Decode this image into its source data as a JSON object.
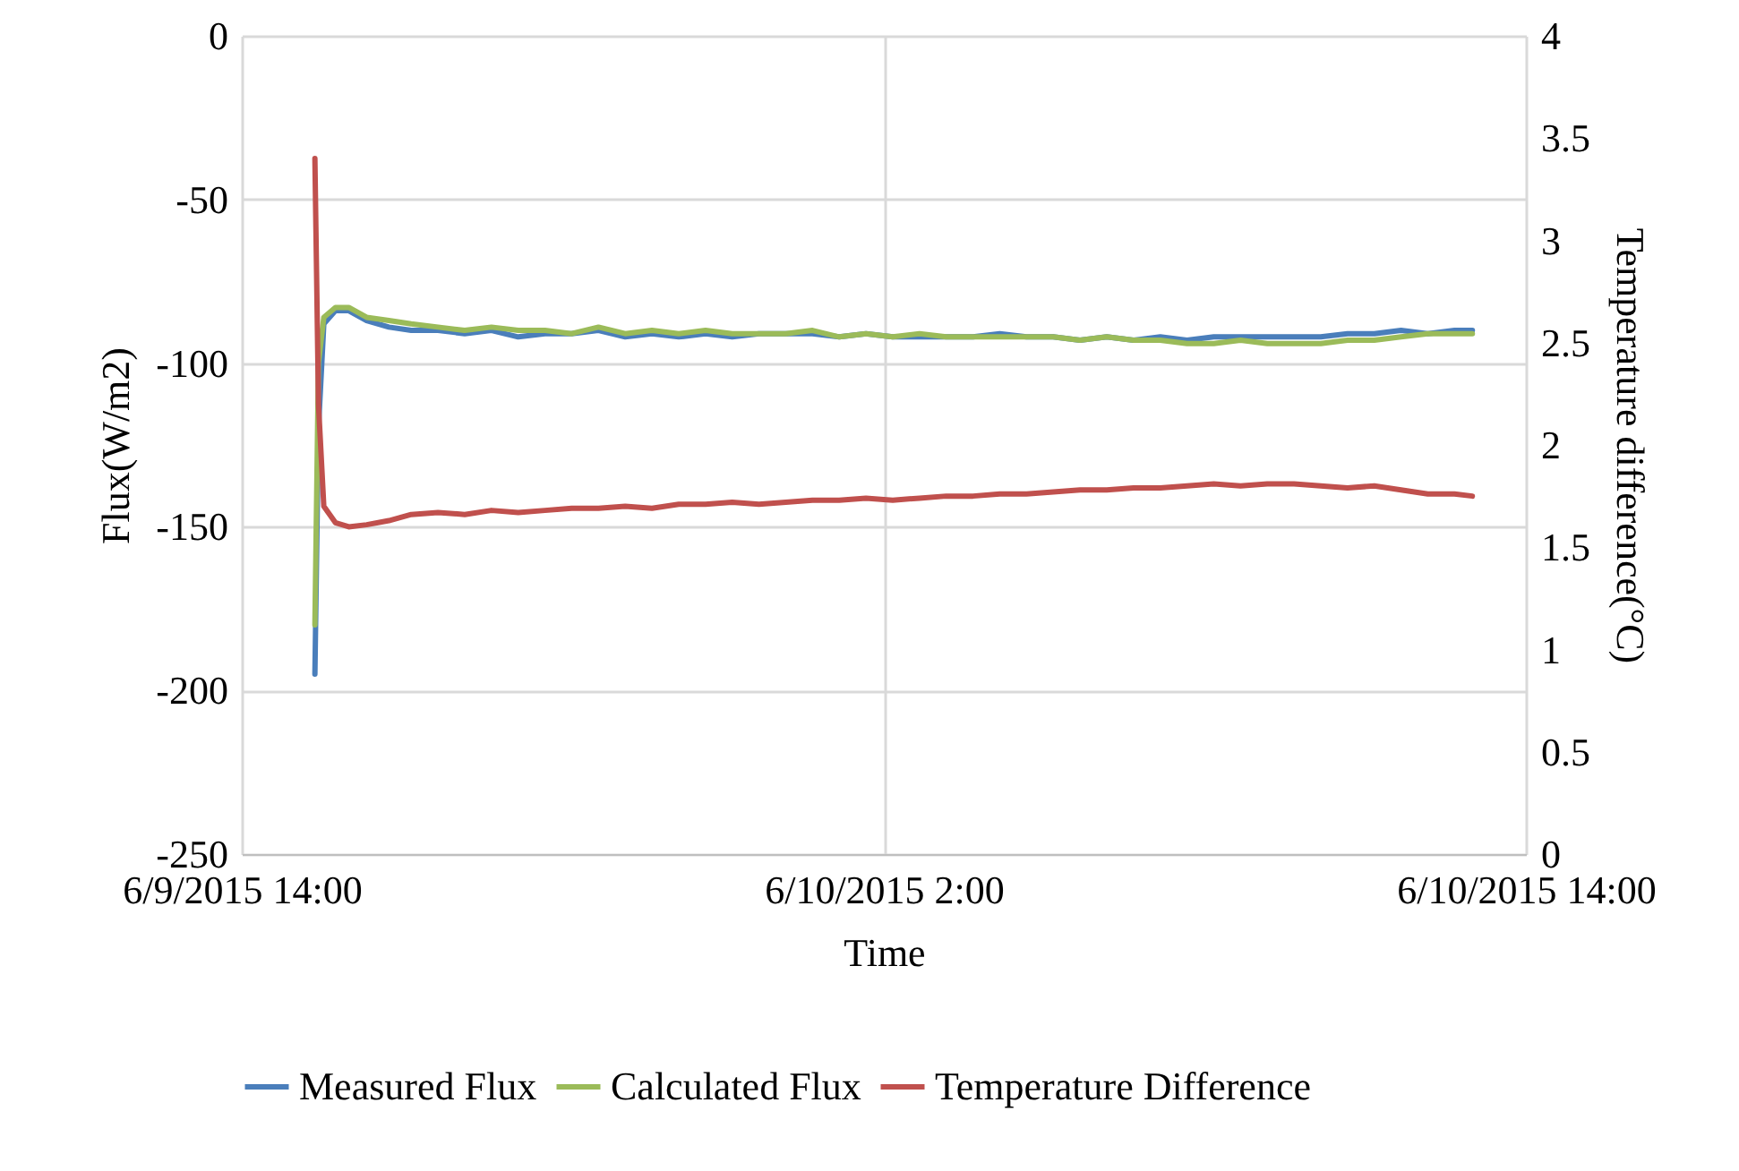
{
  "chart_data": {
    "type": "line",
    "xlabel": "Time",
    "ylabel": "Flux(W/m2)",
    "y2label": "Temperature difference(°C)",
    "x": [
      "2015-06-09T15:22",
      "2015-06-09T15:26",
      "2015-06-09T15:32",
      "2015-06-09T15:45",
      "2015-06-09T16:00",
      "2015-06-09T16:20",
      "2015-06-09T16:45",
      "2015-06-09T17:10",
      "2015-06-09T17:40",
      "2015-06-09T18:10",
      "2015-06-09T18:40",
      "2015-06-09T19:10",
      "2015-06-09T19:40",
      "2015-06-09T20:10",
      "2015-06-09T20:40",
      "2015-06-09T21:10",
      "2015-06-09T21:40",
      "2015-06-09T22:10",
      "2015-06-09T22:40",
      "2015-06-09T23:10",
      "2015-06-09T23:40",
      "2015-06-10T00:10",
      "2015-06-10T00:40",
      "2015-06-10T01:10",
      "2015-06-10T01:40",
      "2015-06-10T02:10",
      "2015-06-10T02:40",
      "2015-06-10T03:10",
      "2015-06-10T03:40",
      "2015-06-10T04:10",
      "2015-06-10T04:40",
      "2015-06-10T05:10",
      "2015-06-10T05:40",
      "2015-06-10T06:10",
      "2015-06-10T06:40",
      "2015-06-10T07:10",
      "2015-06-10T07:40",
      "2015-06-10T08:10",
      "2015-06-10T08:40",
      "2015-06-10T09:10",
      "2015-06-10T09:40",
      "2015-06-10T10:10",
      "2015-06-10T10:40",
      "2015-06-10T11:10",
      "2015-06-10T11:40",
      "2015-06-10T12:10",
      "2015-06-10T12:40",
      "2015-06-10T13:00"
    ],
    "series": [
      {
        "name": "Measured Flux",
        "color": "#4a7ebb",
        "values": [
          -195,
          -120,
          -88,
          -84,
          -84,
          -87,
          -89,
          -90,
          -90,
          -91,
          -90,
          -92,
          -91,
          -91,
          -90,
          -92,
          -91,
          -92,
          -91,
          -92,
          -91,
          -91,
          -91,
          -92,
          -91,
          -92,
          -92,
          -92,
          -92,
          -91,
          -92,
          -92,
          -93,
          -92,
          -93,
          -92,
          -93,
          -92,
          -92,
          -92,
          -92,
          -92,
          -91,
          -91,
          -90,
          -91,
          -90,
          -90
        ]
      },
      {
        "name": "Calculated Flux",
        "color": "#9bbb59",
        "values": [
          -180,
          -100,
          -86,
          -83,
          -83,
          -86,
          -87,
          -88,
          -89,
          -90,
          -89,
          -90,
          -90,
          -91,
          -89,
          -91,
          -90,
          -91,
          -90,
          -91,
          -91,
          -91,
          -90,
          -92,
          -91,
          -92,
          -91,
          -92,
          -92,
          -92,
          -92,
          -92,
          -93,
          -92,
          -93,
          -93,
          -94,
          -94,
          -93,
          -94,
          -94,
          -94,
          -93,
          -93,
          -92,
          -91,
          -91,
          -91
        ]
      },
      {
        "name": "Temperature Difference",
        "color": "#c0504d",
        "axis": "y2",
        "values": [
          3.4,
          2.2,
          1.7,
          1.62,
          1.6,
          1.61,
          1.63,
          1.66,
          1.67,
          1.66,
          1.68,
          1.67,
          1.68,
          1.69,
          1.69,
          1.7,
          1.69,
          1.71,
          1.71,
          1.72,
          1.71,
          1.72,
          1.73,
          1.73,
          1.74,
          1.73,
          1.74,
          1.75,
          1.75,
          1.76,
          1.76,
          1.77,
          1.78,
          1.78,
          1.79,
          1.79,
          1.8,
          1.81,
          1.8,
          1.81,
          1.81,
          1.8,
          1.79,
          1.8,
          1.78,
          1.76,
          1.76,
          1.75
        ]
      }
    ],
    "xlim": [
      "2015-06-09T14:00",
      "2015-06-10T14:00"
    ],
    "xticks": [
      {
        "value": "2015-06-09T14:00",
        "label": "6/9/2015 14:00"
      },
      {
        "value": "2015-06-10T02:00",
        "label": "6/10/2015 2:00"
      },
      {
        "value": "2015-06-10T14:00",
        "label": "6/10/2015 14:00"
      }
    ],
    "ylim": [
      -250,
      0
    ],
    "yticks": [
      -250,
      -200,
      -150,
      -100,
      -50,
      0
    ],
    "y2lim": [
      0,
      4
    ],
    "y2ticks": [
      0,
      0.5,
      1,
      1.5,
      2,
      2.5,
      3,
      3.5,
      4
    ],
    "grid": true,
    "legend": "bottom",
    "line_style": "solid"
  }
}
